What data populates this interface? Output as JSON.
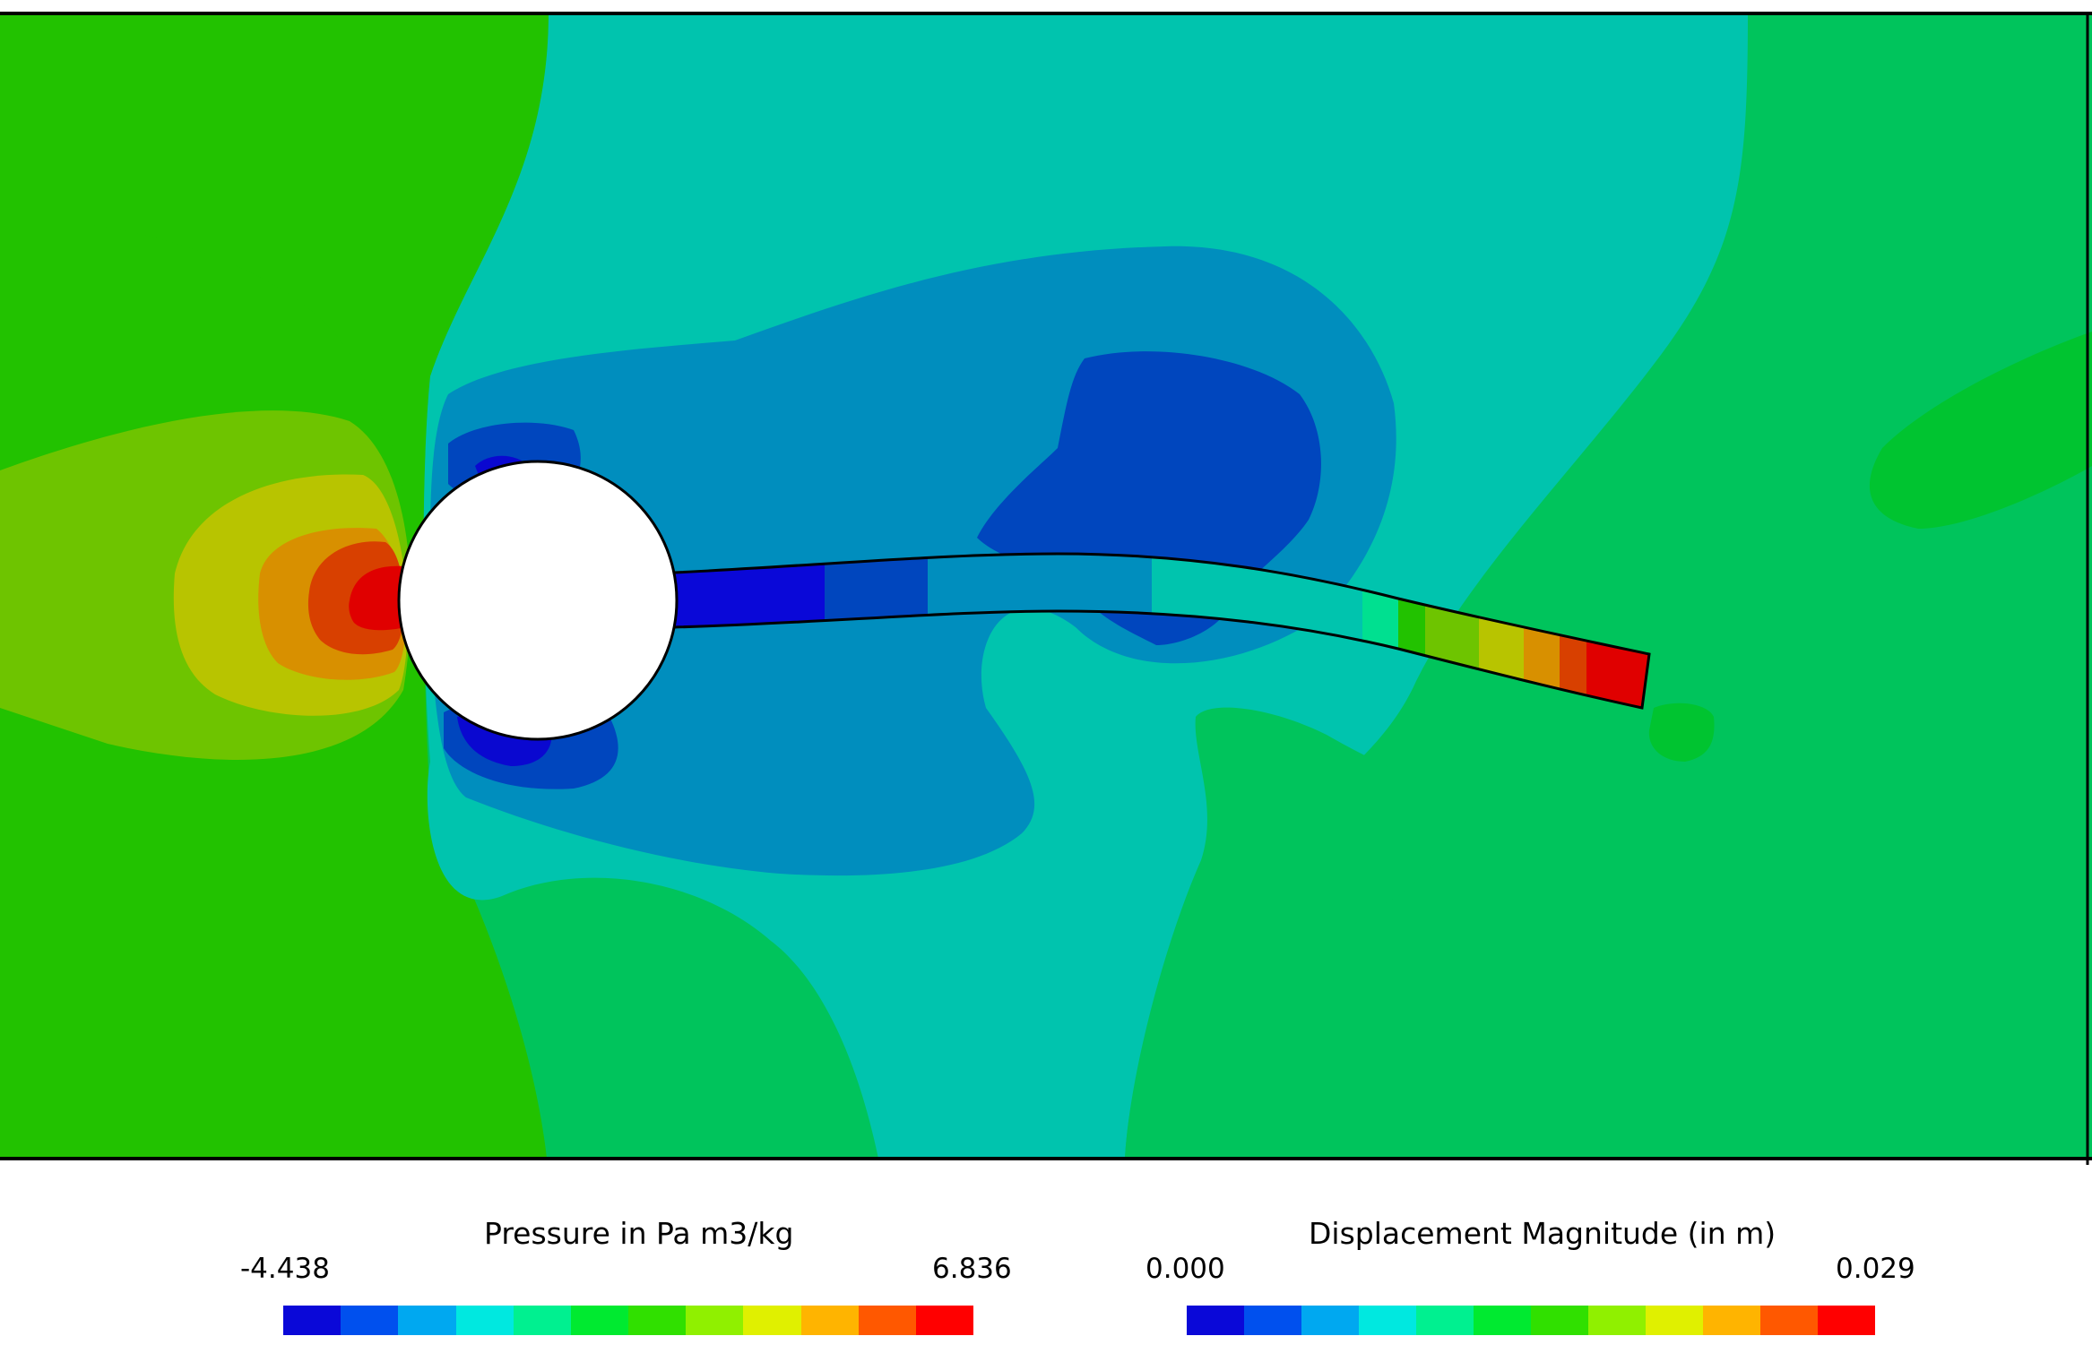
{
  "colors": {
    "frame": "#000000",
    "pressure_bands": [
      "#0a08d8",
      "#0050ee",
      "#00a8f0",
      "#00e8e0",
      "#00f090",
      "#00ea30",
      "#30e000",
      "#90f000",
      "#e0f000",
      "#ffb400",
      "#ff5800",
      "#ff0000"
    ],
    "field": {
      "green_outer": "#00c45c",
      "green_left": "#22c200",
      "green_mid": "#6ec400",
      "yellow": "#b8c400",
      "orange": "#d89000",
      "red_orange": "#d84000",
      "red": "#e00000",
      "teal": "#00c4ae",
      "steel_blue": "#008ebe",
      "blue": "#0046be",
      "deep_blue": "#0a08d0",
      "green_spot": "#00c430"
    },
    "beam_segments": [
      "#0a08d8",
      "#0046be",
      "#008ebe",
      "#00c4ae",
      "#00e090",
      "#22c200",
      "#6ec400",
      "#b8c400",
      "#d89000",
      "#d84000",
      "#e00000"
    ]
  },
  "legend_pressure": {
    "title": "Pressure in Pa m3/kg",
    "min_label": "-4.438",
    "max_label": "6.836"
  },
  "legend_displacement": {
    "title": "Displacement Magnitude (in m)",
    "min_label": "0.000",
    "max_label": "0.029"
  }
}
